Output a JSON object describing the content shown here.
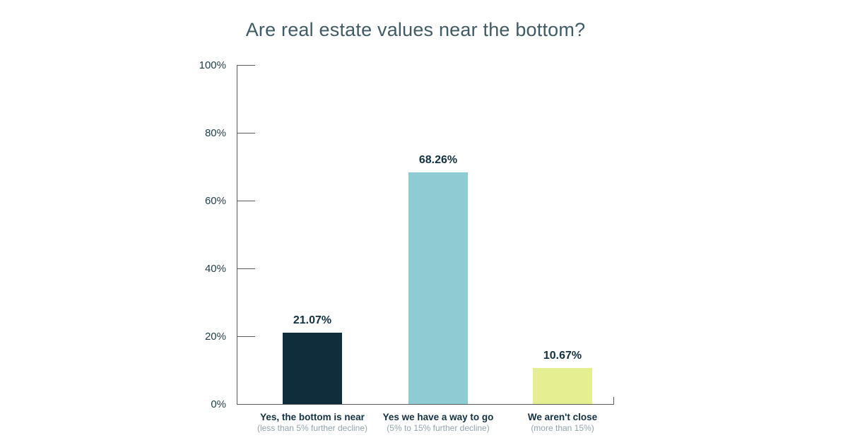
{
  "title": "Are real estate values near the bottom?",
  "chart_data": {
    "type": "bar",
    "title": "Are real estate values near the bottom?",
    "categories": [
      "Yes, the bottom is near",
      "Yes we have a way to go",
      "We aren't close"
    ],
    "category_subtitles": [
      "(less than 5% further decline)",
      "(5% to 15% further decline)",
      "(more than 15%)"
    ],
    "values": [
      21.07,
      68.26,
      10.67
    ],
    "value_labels": [
      "21.07%",
      "68.26%",
      "10.67%"
    ],
    "bar_colors": [
      "#0f2d3a",
      "#8cccd2",
      "#e5ee90"
    ],
    "yticks": [
      "100%",
      "80%",
      "60%",
      "40%",
      "20%",
      "0%"
    ],
    "ylim": [
      0,
      100
    ],
    "xlabel": "",
    "ylabel": "",
    "grid": false,
    "legend": false,
    "colors": {
      "title_text": "#405b64",
      "axis_line": "#5a5a5a",
      "tick_label_text": "#1e3b45",
      "value_label_text": "#14313f",
      "category_label_text": "#14313f",
      "category_subtitle_text": "#92a3ac",
      "background": "#ffffff"
    }
  }
}
